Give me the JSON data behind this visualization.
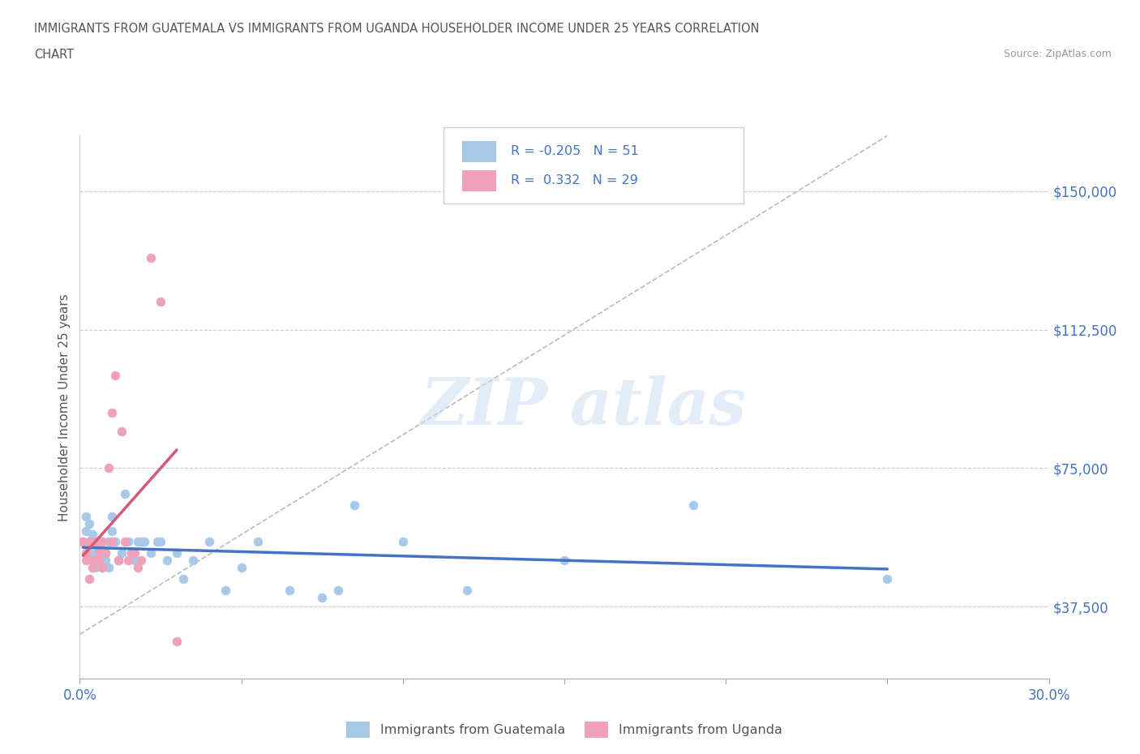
{
  "title_line1": "IMMIGRANTS FROM GUATEMALA VS IMMIGRANTS FROM UGANDA HOUSEHOLDER INCOME UNDER 25 YEARS CORRELATION",
  "title_line2": "CHART",
  "source_text": "Source: ZipAtlas.com",
  "ylabel": "Householder Income Under 25 years",
  "xlim": [
    0.0,
    0.3
  ],
  "ylim": [
    18000,
    165000
  ],
  "xticks": [
    0.0,
    0.05,
    0.1,
    0.15,
    0.2,
    0.25,
    0.3
  ],
  "xticklabels": [
    "0.0%",
    "",
    "",
    "",
    "",
    "",
    "30.0%"
  ],
  "yticks": [
    37500,
    75000,
    112500,
    150000
  ],
  "yticklabels": [
    "$37,500",
    "$75,000",
    "$112,500",
    "$150,000"
  ],
  "guatemala_color": "#a8c8e8",
  "uganda_color": "#f0a0b8",
  "trendline_color_guatemala": "#4472c4",
  "trendline_color_uganda": "#d45878",
  "R_guatemala": -0.205,
  "N_guatemala": 51,
  "R_uganda": 0.332,
  "N_uganda": 29,
  "guatemala_x": [
    0.001,
    0.002,
    0.002,
    0.003,
    0.003,
    0.003,
    0.004,
    0.004,
    0.005,
    0.005,
    0.005,
    0.006,
    0.006,
    0.007,
    0.007,
    0.008,
    0.008,
    0.009,
    0.009,
    0.01,
    0.01,
    0.011,
    0.012,
    0.013,
    0.014,
    0.015,
    0.016,
    0.017,
    0.018,
    0.019,
    0.02,
    0.022,
    0.024,
    0.025,
    0.027,
    0.03,
    0.032,
    0.035,
    0.04,
    0.045,
    0.05,
    0.055,
    0.065,
    0.075,
    0.08,
    0.085,
    0.1,
    0.12,
    0.15,
    0.19,
    0.25
  ],
  "guatemala_y": [
    55000,
    58000,
    62000,
    55000,
    52000,
    60000,
    57000,
    50000,
    55000,
    48000,
    52000,
    55000,
    50000,
    55000,
    48000,
    52000,
    50000,
    55000,
    48000,
    62000,
    58000,
    55000,
    50000,
    52000,
    68000,
    55000,
    52000,
    50000,
    55000,
    55000,
    55000,
    52000,
    55000,
    55000,
    50000,
    52000,
    45000,
    50000,
    55000,
    42000,
    48000,
    55000,
    42000,
    40000,
    42000,
    65000,
    55000,
    42000,
    50000,
    65000,
    45000
  ],
  "uganda_x": [
    0.001,
    0.002,
    0.002,
    0.003,
    0.003,
    0.004,
    0.004,
    0.005,
    0.005,
    0.006,
    0.006,
    0.007,
    0.007,
    0.008,
    0.009,
    0.01,
    0.01,
    0.011,
    0.012,
    0.013,
    0.014,
    0.015,
    0.016,
    0.017,
    0.018,
    0.019,
    0.022,
    0.025,
    0.03
  ],
  "uganda_y": [
    55000,
    52000,
    50000,
    55000,
    45000,
    50000,
    48000,
    55000,
    50000,
    50000,
    52000,
    55000,
    48000,
    52000,
    75000,
    55000,
    90000,
    100000,
    50000,
    85000,
    55000,
    50000,
    52000,
    52000,
    48000,
    50000,
    132000,
    120000,
    28000
  ],
  "diag_line_x": [
    0.0,
    0.25
  ],
  "diag_line_y": [
    30000,
    165000
  ]
}
